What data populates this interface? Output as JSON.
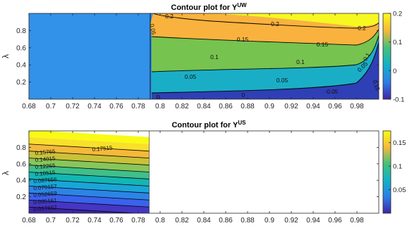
{
  "chart_data": [
    {
      "type": "contour",
      "title": "Contour plot for Y",
      "title_superscript": "UW",
      "xlabel": "",
      "ylabel": "λ",
      "xlim": [
        0.68,
        1.0
      ],
      "ylim": [
        0.0,
        1.0
      ],
      "x_ticks": [
        "0.68",
        "0.7",
        "0.72",
        "0.74",
        "0.76",
        "0.78",
        "0.8",
        "0.82",
        "0.84",
        "0.86",
        "0.88",
        "0.9",
        "0.92",
        "0.94",
        "0.96",
        "0.98"
      ],
      "y_ticks": [
        "0.2",
        "0.4",
        "0.6",
        "0.8"
      ],
      "colorbar": {
        "range": [
          -0.1,
          0.2
        ],
        "ticks": [
          "0.2",
          "0.1",
          "0",
          "-0.1"
        ]
      },
      "contour_labels": [
        "0.2",
        "0.2",
        "0.2",
        "0.15",
        "0.15",
        "0.1",
        "0.1",
        "0.05",
        "0.05",
        "0.05",
        "0",
        "-0.05",
        "0.15",
        "0.1",
        "0.05",
        "0"
      ],
      "regions": [
        {
          "level": "flat region, λ ≤ 1 for x < 0.79",
          "value": 0.0
        },
        {
          "level": "top band",
          "value": 0.2
        },
        {
          "level": "bottom band near x = 1",
          "value": -0.1
        }
      ]
    },
    {
      "type": "contour",
      "title": "Contour plot for Y",
      "title_superscript": "US",
      "xlabel": "",
      "ylabel": "λ",
      "xlim": [
        0.68,
        1.0
      ],
      "ylim": [
        0.0,
        1.0
      ],
      "x_ticks": [
        "0.68",
        "0.7",
        "0.72",
        "0.74",
        "0.76",
        "0.78",
        "0.8",
        "0.82",
        "0.84",
        "0.86",
        "0.88",
        "0.9",
        "0.92",
        "0.94",
        "0.96",
        "0.98"
      ],
      "y_ticks": [
        "0.2",
        "0.4",
        "0.6",
        "0.8"
      ],
      "colorbar": {
        "range": [
          0.0,
          0.175
        ],
        "ticks": [
          "0.15",
          "0.1",
          "0.05"
        ]
      },
      "defined_x_range": [
        0.68,
        0.79
      ],
      "contour_labels": [
        "0.17515",
        "0.15765",
        "0.14015",
        "0.12265",
        "0.10515",
        "0.087656",
        "0.070157",
        "0.052659",
        "0.035161",
        "0.017662"
      ]
    }
  ]
}
